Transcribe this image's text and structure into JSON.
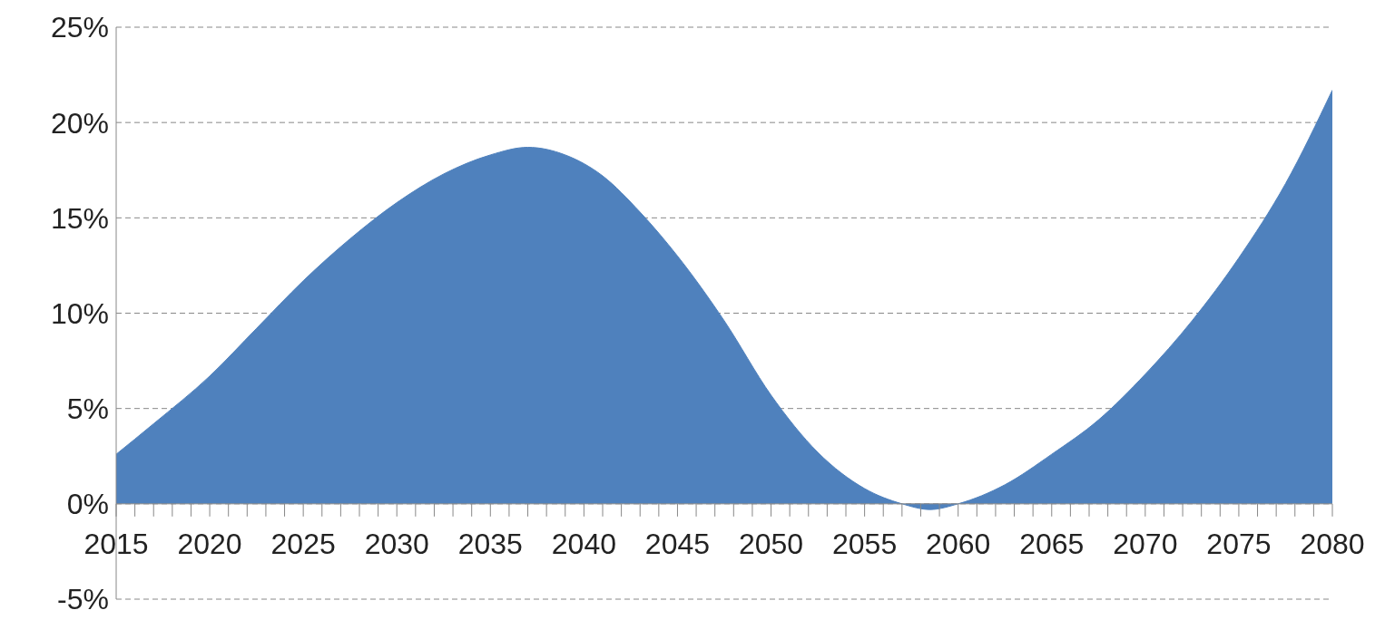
{
  "chart_data": {
    "type": "area",
    "x": [
      2015,
      2017,
      2020,
      2022.5,
      2025,
      2027.5,
      2030,
      2032.5,
      2035,
      2037,
      2039,
      2041,
      2043,
      2045,
      2047.5,
      2050,
      2052.5,
      2055,
      2057,
      2058.5,
      2060,
      2062.5,
      2065,
      2067.5,
      2070,
      2072.5,
      2075,
      2077.5,
      2080
    ],
    "series": [
      {
        "color": "#4f81bd",
        "values": [
          2.6,
          4.2,
          6.7,
          9.2,
          11.7,
          13.9,
          15.8,
          17.3,
          18.3,
          18.7,
          18.3,
          17.2,
          15.3,
          13.0,
          9.6,
          5.7,
          2.7,
          0.8,
          0,
          -0.3,
          0,
          1.0,
          2.6,
          4.4,
          6.8,
          9.6,
          12.9,
          16.8,
          21.7
        ]
      }
    ],
    "xlim": [
      2015,
      2080
    ],
    "xticks": [
      2015,
      {
        "value": 2016,
        "label": null
      },
      {
        "value": 2017,
        "label": null
      },
      {
        "value": 2018,
        "label": null
      },
      {
        "value": 2019,
        "label": null
      },
      2020,
      {
        "value": 2021,
        "label": null
      },
      {
        "value": 2022,
        "label": null
      },
      {
        "value": 2023,
        "label": null
      },
      {
        "value": 2024,
        "label": null
      },
      2025,
      {
        "value": 2026,
        "label": null
      },
      {
        "value": 2027,
        "label": null
      },
      {
        "value": 2028,
        "label": null
      },
      {
        "value": 2029,
        "label": null
      },
      2030,
      {
        "value": 2031,
        "label": null
      },
      {
        "value": 2032,
        "label": null
      },
      {
        "value": 2033,
        "label": null
      },
      {
        "value": 2034,
        "label": null
      },
      2035,
      {
        "value": 2036,
        "label": null
      },
      {
        "value": 2037,
        "label": null
      },
      {
        "value": 2038,
        "label": null
      },
      {
        "value": 2039,
        "label": null
      },
      2040,
      {
        "value": 2041,
        "label": null
      },
      {
        "value": 2042,
        "label": null
      },
      {
        "value": 2043,
        "label": null
      },
      {
        "value": 2044,
        "label": null
      },
      2045,
      {
        "value": 2046,
        "label": null
      },
      {
        "value": 2047,
        "label": null
      },
      {
        "value": 2048,
        "label": null
      },
      {
        "value": 2049,
        "label": null
      },
      2050,
      {
        "value": 2051,
        "label": null
      },
      {
        "value": 2052,
        "label": null
      },
      {
        "value": 2053,
        "label": null
      },
      {
        "value": 2054,
        "label": null
      },
      2055,
      {
        "value": 2056,
        "label": null
      },
      {
        "value": 2057,
        "label": null
      },
      {
        "value": 2058,
        "label": null
      },
      {
        "value": 2059,
        "label": null
      },
      2060,
      {
        "value": 2061,
        "label": null
      },
      {
        "value": 2062,
        "label": null
      },
      {
        "value": 2063,
        "label": null
      },
      {
        "value": 2064,
        "label": null
      },
      2065,
      {
        "value": 2066,
        "label": null
      },
      {
        "value": 2067,
        "label": null
      },
      {
        "value": 2068,
        "label": null
      },
      {
        "value": 2069,
        "label": null
      },
      2070,
      {
        "value": 2071,
        "label": null
      },
      {
        "value": 2072,
        "label": null
      },
      {
        "value": 2073,
        "label": null
      },
      {
        "value": 2074,
        "label": null
      },
      2075,
      {
        "value": 2076,
        "label": null
      },
      {
        "value": 2077,
        "label": null
      },
      {
        "value": 2078,
        "label": null
      },
      {
        "value": 2079,
        "label": null
      },
      2080
    ],
    "ylim": [
      -5,
      25
    ],
    "yticks": [
      {
        "value": -5,
        "label": "-5%"
      },
      {
        "value": 0,
        "label": "0%"
      },
      {
        "value": 5,
        "label": "5%"
      },
      {
        "value": 10,
        "label": "10%"
      },
      {
        "value": 15,
        "label": "15%"
      },
      {
        "value": 20,
        "label": "20%"
      },
      {
        "value": 25,
        "label": "25%"
      }
    ],
    "grid": "y"
  }
}
